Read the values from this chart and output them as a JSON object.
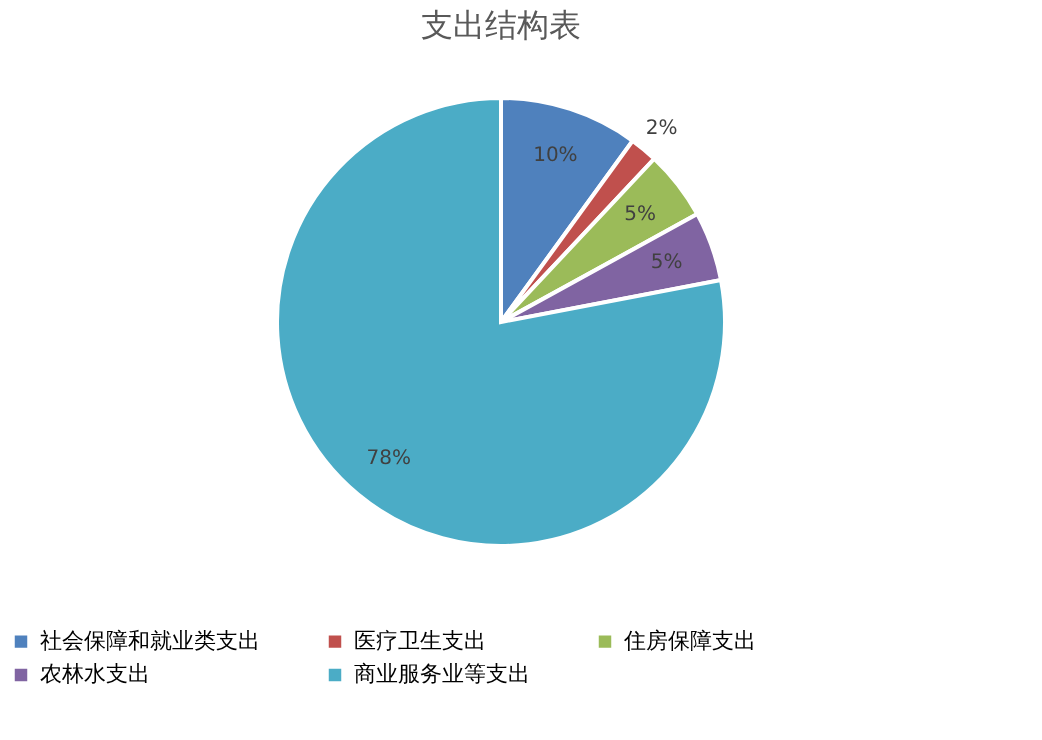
{
  "chart_data": {
    "type": "pie",
    "title": "支出结构表",
    "categories": [
      "社会保障和就业类支出",
      "医疗卫生支出",
      "住房保障支出",
      "农林水支出",
      "商业服务业等支出"
    ],
    "values": [
      10,
      2,
      5,
      5,
      78
    ],
    "colors": [
      "#4f81bd",
      "#c0504d",
      "#9bbb59",
      "#8064a2",
      "#4bacc6"
    ],
    "value_labels": [
      "10%",
      "2%",
      "5%",
      "5%",
      "78%"
    ],
    "legend": "bottom"
  }
}
